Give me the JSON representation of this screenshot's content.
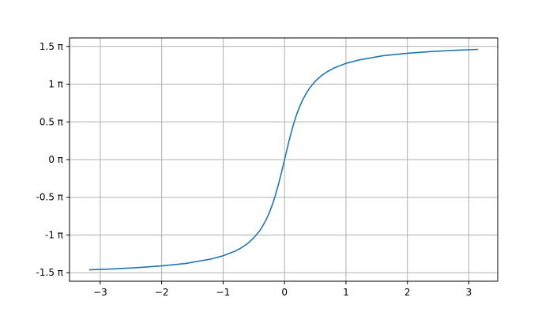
{
  "chart_data": {
    "type": "line",
    "title": "",
    "xlabel": "",
    "ylabel": "",
    "xlim": [
      -3.5,
      3.47
    ],
    "ylim": [
      -1.613,
      1.613
    ],
    "y_unit": "π",
    "grid": true,
    "line_color": "#1f77b4",
    "x_ticks": [
      -3,
      -2,
      -1,
      0,
      1,
      2,
      3
    ],
    "x_tick_labels": [
      "−3",
      "−2",
      "−1",
      "0",
      "1",
      "2",
      "3"
    ],
    "y_ticks": [
      -1.5,
      -1,
      -0.5,
      0,
      0.5,
      1,
      1.5
    ],
    "y_tick_labels": [
      "-1.5 π",
      "-1 π",
      "-0.5 π",
      "0 π",
      "0.5 π",
      "1 π",
      "1.5 π"
    ],
    "series": [
      {
        "x": [
          -3.18,
          -2.8,
          -2.4,
          -2.0,
          -1.6,
          -1.2,
          -1.0,
          -0.8,
          -0.7,
          -0.6,
          -0.5,
          -0.4,
          -0.35,
          -0.3,
          -0.25,
          -0.2,
          -0.15,
          -0.1,
          -0.05,
          0,
          0.05,
          0.1,
          0.15,
          0.2,
          0.25,
          0.3,
          0.35,
          0.4,
          0.5,
          0.6,
          0.7,
          0.8,
          1.0,
          1.2,
          1.6,
          2.0,
          2.4,
          2.8,
          3.15
        ],
        "y": [
          -1.462,
          -1.45,
          -1.433,
          -1.41,
          -1.376,
          -1.319,
          -1.276,
          -1.212,
          -1.168,
          -1.112,
          -1.038,
          -0.938,
          -0.874,
          -0.799,
          -0.709,
          -0.603,
          -0.477,
          -0.332,
          -0.171,
          0,
          0.171,
          0.332,
          0.477,
          0.603,
          0.709,
          0.799,
          0.874,
          0.938,
          1.038,
          1.112,
          1.168,
          1.212,
          1.276,
          1.319,
          1.376,
          1.41,
          1.433,
          1.45,
          1.461
        ]
      }
    ]
  }
}
